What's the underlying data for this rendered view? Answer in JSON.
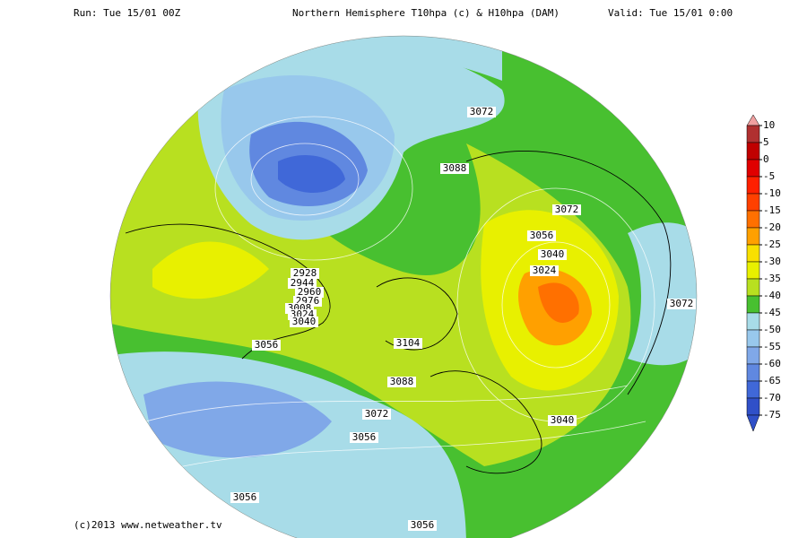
{
  "header": {
    "run": "Run: Tue 15/01 00Z",
    "title": "Northern Hemisphere T10hpa (c) & H10hpa (DAM)",
    "valid": "Valid: Tue 15/01 0:00"
  },
  "colorbar": {
    "ticks": [
      10,
      5,
      0,
      -5,
      -10,
      -15,
      -20,
      -25,
      -30,
      -35,
      -40,
      -45,
      -50,
      -55,
      -60,
      -65,
      -70,
      -75
    ],
    "colors": [
      "#f0a0a0",
      "#b03030",
      "#c00000",
      "#e00000",
      "#ff2000",
      "#ff4000",
      "#ff7000",
      "#ffa000",
      "#f8e000",
      "#e8f000",
      "#b8e020",
      "#48c030",
      "#a8dce8",
      "#98c8ec",
      "#80a8e8",
      "#6088e0",
      "#4068d8",
      "#3050c8"
    ]
  },
  "contour_labels": [
    "3072",
    "3088",
    "3072",
    "3056",
    "3040",
    "3024",
    "3072",
    "2928",
    "2944",
    "2960",
    "2976",
    "3008",
    "3024",
    "3040",
    "3056",
    "3104",
    "3088",
    "3072",
    "3040",
    "3056",
    "3056",
    "3056"
  ],
  "footer": "(c)2013 www.netweather.tv"
}
